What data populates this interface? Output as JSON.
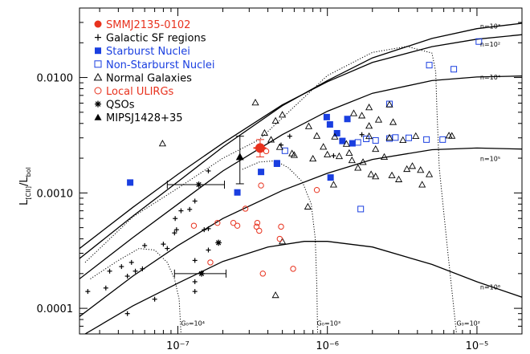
{
  "chart_data": {
    "type": "scatter",
    "x_scale": "log",
    "y_scale": "log",
    "xlim": [
      2.2e-08,
      2e-05
    ],
    "ylim": [
      6e-05,
      0.04
    ],
    "xticks": [
      {
        "value": 1e-07,
        "label": "10⁻⁷"
      },
      {
        "value": 1e-06,
        "label": "10⁻⁶"
      },
      {
        "value": 1e-05,
        "label": "10⁻⁵"
      }
    ],
    "yticks": [
      {
        "value": 0.0001,
        "label": "0.0001"
      },
      {
        "value": 0.001,
        "label": "0.0010"
      },
      {
        "value": 0.01,
        "label": "0.0100"
      }
    ],
    "ylabel": {
      "main": "L",
      "sub1": "[CII]",
      "mid": "/L",
      "sub2": "bol"
    },
    "colors": {
      "red": "#e8321e",
      "blue": "#1a3fe0",
      "black": "#000000"
    },
    "legend": [
      {
        "label": "SMMJ2135-0102",
        "marker": "red-circle-filled",
        "color": "#e8321e"
      },
      {
        "label": "Galactic SF regions",
        "marker": "plus",
        "color": "#000000"
      },
      {
        "label": "Starburst Nuclei",
        "marker": "blue-square-filled",
        "color": "#1a3fe0"
      },
      {
        "label": "Non-Starburst Nuclei",
        "marker": "blue-square-open",
        "color": "#1a3fe0"
      },
      {
        "label": "Normal Galaxies",
        "marker": "triangle-open",
        "color": "#000000"
      },
      {
        "label": "Local ULIRGs",
        "marker": "red-circle-open",
        "color": "#e8321e"
      },
      {
        "label": "QSOs",
        "marker": "asterisk",
        "color": "#000000"
      },
      {
        "label": "MIPSJ1428+35",
        "marker": "triangle-filled",
        "color": "#000000"
      }
    ],
    "curve_labels": [
      {
        "text": "n=10³",
        "x": 1.05e-05,
        "y": 0.0265
      },
      {
        "text": "n=10²",
        "x": 1.05e-05,
        "y": 0.0185
      },
      {
        "text": "n=10⁴",
        "x": 1.05e-05,
        "y": 0.0096
      },
      {
        "text": "n=10⁵",
        "x": 1.05e-05,
        "y": 0.0019
      },
      {
        "text": "n=10⁶",
        "x": 1.05e-05,
        "y": 0.000146
      },
      {
        "text": "G₀=10⁴",
        "x": 1.05e-07,
        "y": 7.1e-05
      },
      {
        "text": "G₀=10³",
        "x": 8.5e-07,
        "y": 7.1e-05
      },
      {
        "text": "G₀=10²",
        "x": 7.3e-06,
        "y": 7.1e-05
      }
    ],
    "series": [
      {
        "name": "n=10² model",
        "style": "solid",
        "points": [
          [
            2.2e-08,
            0.00033
          ],
          [
            5e-08,
            0.00075
          ],
          [
            1e-07,
            0.00145
          ],
          [
            2e-07,
            0.0027
          ],
          [
            5e-07,
            0.0058
          ],
          [
            1e-06,
            0.0092
          ],
          [
            2e-06,
            0.0135
          ],
          [
            5e-06,
            0.0185
          ],
          [
            1e-05,
            0.0215
          ],
          [
            2e-05,
            0.0235
          ]
        ]
      },
      {
        "name": "n=10³ model",
        "style": "solid",
        "points": [
          [
            2.2e-08,
            0.00027
          ],
          [
            5e-08,
            0.00063
          ],
          [
            1e-07,
            0.00125
          ],
          [
            2e-07,
            0.0025
          ],
          [
            5e-07,
            0.0057
          ],
          [
            1e-06,
            0.0094
          ],
          [
            2e-06,
            0.0148
          ],
          [
            5e-06,
            0.0218
          ],
          [
            1e-05,
            0.0265
          ],
          [
            2e-05,
            0.0295
          ]
        ]
      },
      {
        "name": "n=10⁴ model",
        "style": "solid",
        "points": [
          [
            2.2e-08,
            0.00018
          ],
          [
            5e-08,
            0.00041
          ],
          [
            1e-07,
            0.0008
          ],
          [
            2e-07,
            0.00155
          ],
          [
            5e-07,
            0.0032
          ],
          [
            1e-06,
            0.0051
          ],
          [
            2e-06,
            0.0073
          ],
          [
            5e-06,
            0.0094
          ],
          [
            1e-05,
            0.0101
          ],
          [
            2e-05,
            0.0103
          ]
        ]
      },
      {
        "name": "n=10⁵ model",
        "style": "solid",
        "points": [
          [
            2.2e-08,
            8.5e-05
          ],
          [
            5e-08,
            0.00019
          ],
          [
            1e-07,
            0.00035
          ],
          [
            2e-07,
            0.0006
          ],
          [
            5e-07,
            0.00105
          ],
          [
            1e-06,
            0.00148
          ],
          [
            2e-06,
            0.00195
          ],
          [
            5e-06,
            0.00237
          ],
          [
            1e-05,
            0.00245
          ],
          [
            2e-05,
            0.0024
          ]
        ]
      },
      {
        "name": "n=10⁶ model",
        "style": "solid",
        "points": [
          [
            2.4e-08,
            6e-05
          ],
          [
            5e-08,
            0.000105
          ],
          [
            1e-07,
            0.000165
          ],
          [
            2e-07,
            0.000255
          ],
          [
            4e-07,
            0.00034
          ],
          [
            7e-07,
            0.00038
          ],
          [
            1e-06,
            0.00038
          ],
          [
            2e-06,
            0.00034
          ],
          [
            5e-06,
            0.00024
          ],
          [
            1e-05,
            0.00017
          ],
          [
            2e-05,
            0.000125
          ]
        ]
      },
      {
        "name": "dotted upper model",
        "style": "dotted",
        "points": [
          [
            2.4e-08,
            0.00025
          ],
          [
            5e-08,
            0.00062
          ],
          [
            1e-07,
            0.0011
          ],
          [
            2e-07,
            0.002
          ],
          [
            3.5e-07,
            0.0029
          ],
          [
            1e-06,
            0.0104
          ],
          [
            2e-06,
            0.0165
          ],
          [
            3.4e-06,
            0.0186
          ],
          [
            5e-06,
            0.0163
          ],
          [
            5.3e-06,
            0.0112
          ],
          [
            5.4e-06,
            0.0052
          ],
          [
            5.6e-06,
            0.00165
          ],
          [
            6.4e-06,
            0.0003
          ],
          [
            7.3e-06,
            6e-05
          ]
        ]
      },
      {
        "name": "G0=10^4 dotted",
        "style": "dotted",
        "points": [
          [
            2.6e-08,
            0.00018
          ],
          [
            4e-08,
            0.00026
          ],
          [
            5.5e-08,
            0.00033
          ],
          [
            7e-08,
            0.00032
          ],
          [
            8.5e-08,
            0.00025
          ],
          [
            9.5e-08,
            0.00018
          ],
          [
            1.02e-07,
            0.00012
          ],
          [
            1.05e-07,
            6e-05
          ]
        ]
      },
      {
        "name": "G0=10^3 dotted",
        "style": "dotted",
        "points": [
          [
            2.7e-07,
            0.0016
          ],
          [
            3.5e-07,
            0.00185
          ],
          [
            4.5e-07,
            0.0019
          ],
          [
            5.5e-07,
            0.00165
          ],
          [
            6.8e-07,
            0.00125
          ],
          [
            7.8e-07,
            0.0008
          ],
          [
            8.3e-07,
            0.0004
          ],
          [
            8.5e-07,
            0.00015
          ],
          [
            8.6e-07,
            6e-05
          ]
        ]
      }
    ],
    "points": {
      "galactic_sf": [
        [
          2.5e-08,
          0.00014
        ],
        [
          3.3e-08,
          0.00015
        ],
        [
          3.5e-08,
          0.00021
        ],
        [
          4.2e-08,
          0.00023
        ],
        [
          4.6e-08,
          0.00019
        ],
        [
          5.2e-08,
          0.00021
        ],
        [
          5.8e-08,
          0.00022
        ],
        [
          4.9e-08,
          0.00025
        ],
        [
          4.6e-08,
          9e-05
        ],
        [
          7e-08,
          0.00012
        ],
        [
          8e-08,
          0.00036
        ],
        [
          8.5e-08,
          0.00033
        ],
        [
          9.5e-08,
          0.00045
        ],
        [
          9.8e-08,
          0.00048
        ],
        [
          9.6e-08,
          0.0006
        ],
        [
          1.05e-07,
          0.0007
        ],
        [
          1.2e-07,
          0.00072
        ],
        [
          1.3e-07,
          0.00085
        ],
        [
          1.3e-07,
          0.00026
        ],
        [
          1.3e-07,
          0.00014
        ],
        [
          1.6e-07,
          0.00032
        ],
        [
          1.6e-07,
          0.00049
        ],
        [
          1.3e-07,
          0.00017
        ],
        [
          1.6e-07,
          0.00155
        ],
        [
          5.6e-07,
          0.0031
        ],
        [
          4.9e-07,
          0.0026
        ],
        [
          1.1e-06,
          0.0021
        ],
        [
          1.7e-06,
          0.0032
        ],
        [
          1.5e-07,
          0.00048
        ],
        [
          6e-08,
          0.00035
        ]
      ],
      "starburst": [
        [
          4.8e-08,
          0.00123
        ],
        [
          2.5e-07,
          0.00101
        ],
        [
          3.6e-07,
          0.00152
        ],
        [
          4.6e-07,
          0.00181
        ],
        [
          4.6e-07,
          0.00179
        ],
        [
          9.9e-07,
          0.00454
        ],
        [
          1.04e-06,
          0.00392
        ],
        [
          1.16e-06,
          0.00329
        ],
        [
          1.26e-06,
          0.00282
        ],
        [
          1.36e-06,
          0.00437
        ],
        [
          1.47e-06,
          0.00269
        ],
        [
          1.05e-06,
          0.00136
        ]
      ],
      "non_starburst": [
        [
          5.2e-07,
          0.00232
        ],
        [
          4.8e-06,
          0.0128
        ],
        [
          7e-06,
          0.0118
        ],
        [
          1.03e-05,
          0.0205
        ],
        [
          2.6e-06,
          0.0059
        ],
        [
          1.6e-06,
          0.00274
        ],
        [
          1.82e-06,
          0.00294
        ],
        [
          2.1e-06,
          0.00285
        ],
        [
          2.6e-06,
          0.00296
        ],
        [
          2.85e-06,
          0.00302
        ],
        [
          3.5e-06,
          0.003
        ],
        [
          4.6e-06,
          0.0029
        ],
        [
          5.9e-06,
          0.0029
        ],
        [
          1.67e-06,
          0.000725
        ]
      ],
      "normal_galaxies": [
        [
          7.9e-08,
          0.00268
        ],
        [
          3.3e-07,
          0.00607
        ],
        [
          3.8e-07,
          0.00331
        ],
        [
          4.2e-07,
          0.00289
        ],
        [
          4.8e-07,
          0.0025
        ],
        [
          5e-07,
          0.00476
        ],
        [
          4.5e-07,
          0.00422
        ],
        [
          5.8e-07,
          0.0022
        ],
        [
          6e-07,
          0.00213
        ],
        [
          7.5e-07,
          0.00378
        ],
        [
          8.5e-07,
          0.00312
        ],
        [
          9.4e-07,
          0.00251
        ],
        [
          1e-06,
          0.00215
        ],
        [
          1.12e-06,
          0.00307
        ],
        [
          1.2e-06,
          0.00208
        ],
        [
          1.34e-06,
          0.00266
        ],
        [
          1.46e-06,
          0.00192
        ],
        [
          1.6e-06,
          0.00165
        ],
        [
          1.73e-06,
          0.00185
        ],
        [
          1.96e-06,
          0.00145
        ],
        [
          2.1e-06,
          0.00139
        ],
        [
          2.4e-06,
          0.00205
        ],
        [
          2.7e-06,
          0.00142
        ],
        [
          3e-06,
          0.00131
        ],
        [
          3.4e-06,
          0.00161
        ],
        [
          3.7e-06,
          0.00171
        ],
        [
          4.3e-06,
          0.00118
        ],
        [
          4.8e-06,
          0.00145
        ],
        [
          2.6e-06,
          0.00301
        ],
        [
          3.2e-06,
          0.00287
        ],
        [
          3.9e-06,
          0.00311
        ],
        [
          6.5e-06,
          0.00314
        ],
        [
          1.9e-06,
          0.00381
        ],
        [
          2.2e-06,
          0.00431
        ],
        [
          1.7e-06,
          0.00468
        ],
        [
          1.5e-06,
          0.0049
        ],
        [
          1.9e-06,
          0.00551
        ],
        [
          2.6e-06,
          0.00583
        ],
        [
          2.75e-06,
          0.00411
        ],
        [
          6.8e-06,
          0.00312
        ],
        [
          1.1e-06,
          0.00118
        ],
        [
          7.4e-07,
          0.00076
        ],
        [
          5e-07,
          0.00038
        ],
        [
          4.5e-07,
          0.00013
        ],
        [
          1.9e-06,
          0.0031
        ],
        [
          8e-07,
          0.00198
        ],
        [
          2.1e-06,
          0.0024
        ],
        [
          4.2e-06,
          0.00158
        ],
        [
          1.4e-06,
          0.00222
        ]
      ],
      "local_ulirgs": [
        [
          1.28e-07,
          0.00052
        ],
        [
          1.84e-07,
          0.00055
        ],
        [
          2.35e-07,
          0.00055
        ],
        [
          2.83e-07,
          0.00073
        ],
        [
          3.4e-07,
          0.00055
        ],
        [
          3.5e-07,
          0.00047
        ],
        [
          4.9e-07,
          0.00051
        ],
        [
          4.8e-07,
          0.0004
        ],
        [
          5.9e-07,
          0.00022
        ],
        [
          3.7e-07,
          0.0002
        ],
        [
          3.6e-07,
          0.00116
        ],
        [
          8.5e-07,
          0.00106
        ],
        [
          2.5e-07,
          0.00052
        ],
        [
          3.9e-07,
          0.0023
        ],
        [
          1.65e-07,
          0.00025
        ],
        [
          3.36e-07,
          0.00051
        ]
      ],
      "qsos": [
        [
          1.38e-07,
          0.00118
        ],
        [
          1.87e-07,
          0.00037
        ],
        [
          1.44e-07,
          0.0002
        ]
      ],
      "qso_errorbars": [
        {
          "x": 1.38e-07,
          "y": 0.00118,
          "xerr": [
            8.5e-08,
            2.05e-07
          ]
        },
        {
          "x": 1.44e-07,
          "y": 0.0002,
          "xerr": [
            9.5e-08,
            2.1e-07
          ]
        }
      ],
      "mipsj1428": {
        "x": 2.6e-07,
        "y": 0.00205,
        "yerr": [
          0.0012,
          0.0031
        ]
      },
      "smmj2135": {
        "x": 3.55e-07,
        "y": 0.00245,
        "yerr": [
          0.00205,
          0.0029
        ],
        "xerr": [
          3.2e-07,
          3.9e-07
        ]
      }
    }
  }
}
